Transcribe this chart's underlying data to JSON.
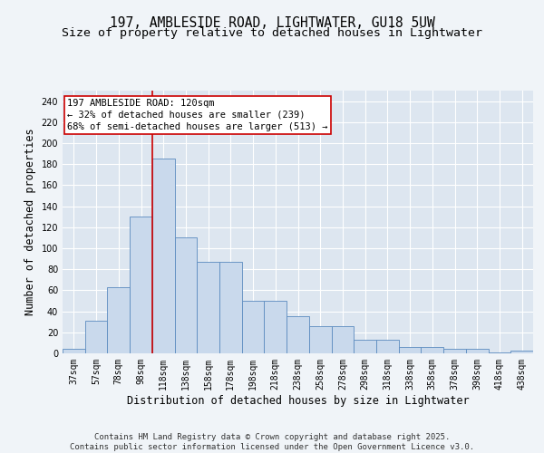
{
  "title": "197, AMBLESIDE ROAD, LIGHTWATER, GU18 5UW",
  "subtitle": "Size of property relative to detached houses in Lightwater",
  "xlabel": "Distribution of detached houses by size in Lightwater",
  "ylabel": "Number of detached properties",
  "categories": [
    "37sqm",
    "57sqm",
    "78sqm",
    "98sqm",
    "118sqm",
    "138sqm",
    "158sqm",
    "178sqm",
    "198sqm",
    "218sqm",
    "238sqm",
    "258sqm",
    "278sqm",
    "298sqm",
    "318sqm",
    "338sqm",
    "358sqm",
    "378sqm",
    "398sqm",
    "418sqm",
    "438sqm"
  ],
  "values": [
    4,
    31,
    63,
    130,
    185,
    110,
    87,
    87,
    50,
    50,
    35,
    26,
    26,
    13,
    13,
    6,
    6,
    4,
    4,
    1,
    3
  ],
  "bar_color": "#c9d9ec",
  "bar_edge_color": "#5b8bbf",
  "background_color": "#dde6f0",
  "fig_background_color": "#f0f4f8",
  "grid_color": "#ffffff",
  "annotation_text": "197 AMBLESIDE ROAD: 120sqm\n← 32% of detached houses are smaller (239)\n68% of semi-detached houses are larger (513) →",
  "annotation_box_color": "#ffffff",
  "annotation_box_edge": "#cc0000",
  "vline_color": "#cc0000",
  "vline_x_index": 4,
  "ylim": [
    0,
    250
  ],
  "yticks": [
    0,
    20,
    40,
    60,
    80,
    100,
    120,
    140,
    160,
    180,
    200,
    220,
    240
  ],
  "footer": "Contains HM Land Registry data © Crown copyright and database right 2025.\nContains public sector information licensed under the Open Government Licence v3.0.",
  "title_fontsize": 10.5,
  "subtitle_fontsize": 9.5,
  "xlabel_fontsize": 8.5,
  "ylabel_fontsize": 8.5,
  "tick_fontsize": 7,
  "annotation_fontsize": 7.5,
  "footer_fontsize": 6.5
}
